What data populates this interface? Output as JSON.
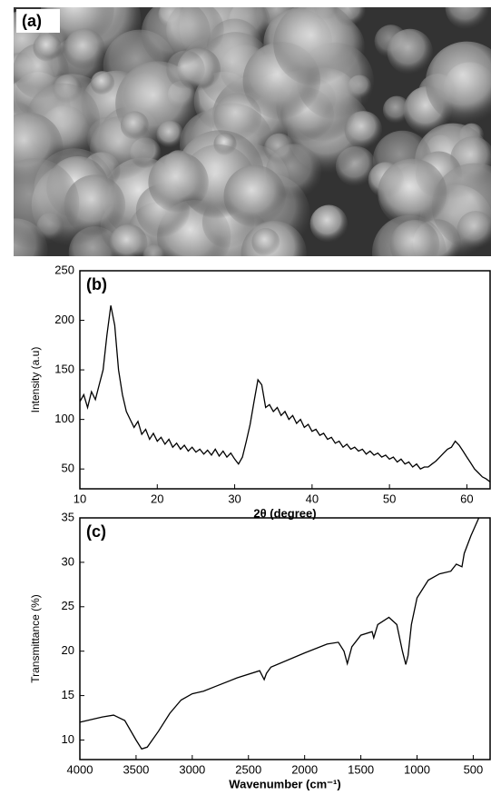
{
  "image": {
    "label": "(a)"
  },
  "chart_data": [
    {
      "type": "line",
      "annotation": "(b)",
      "x_label": "2θ (degree)",
      "y_label": "Intensity (a.u)",
      "color": "#000000",
      "x": [
        10,
        10.5,
        11,
        11.5,
        12,
        12.5,
        13,
        13.5,
        14,
        14.5,
        15,
        15.5,
        16,
        16.5,
        17,
        17.5,
        18,
        18.5,
        19,
        19.5,
        20,
        20.5,
        21,
        21.5,
        22,
        22.5,
        23,
        23.5,
        24,
        24.5,
        25,
        25.5,
        26,
        26.5,
        27,
        27.5,
        28,
        28.5,
        29,
        29.5,
        30,
        30.5,
        31,
        31.5,
        32,
        32.5,
        33,
        33.5,
        34,
        34.5,
        35,
        35.5,
        36,
        36.5,
        37,
        37.5,
        38,
        38.5,
        39,
        39.5,
        40,
        40.5,
        41,
        41.5,
        42,
        42.5,
        43,
        43.5,
        44,
        44.5,
        45,
        45.5,
        46,
        46.5,
        47,
        47.5,
        48,
        48.5,
        49,
        49.5,
        50,
        50.5,
        51,
        51.5,
        52,
        52.5,
        53,
        53.5,
        54,
        54.5,
        55,
        55.5,
        56,
        56.5,
        57,
        57.5,
        58,
        58.5,
        59,
        59.5,
        60,
        60.5,
        61,
        61.5,
        62,
        62.5,
        63
      ],
      "values": [
        118,
        125,
        112,
        128,
        120,
        135,
        150,
        185,
        215,
        195,
        150,
        125,
        108,
        100,
        92,
        98,
        85,
        90,
        80,
        86,
        78,
        82,
        75,
        80,
        72,
        76,
        70,
        74,
        68,
        72,
        67,
        70,
        65,
        69,
        64,
        70,
        63,
        68,
        62,
        66,
        60,
        55,
        62,
        78,
        95,
        118,
        140,
        135,
        112,
        115,
        108,
        112,
        104,
        108,
        100,
        104,
        96,
        100,
        92,
        95,
        88,
        90,
        84,
        86,
        80,
        82,
        76,
        78,
        72,
        75,
        70,
        72,
        68,
        70,
        65,
        68,
        64,
        66,
        62,
        64,
        60,
        62,
        57,
        60,
        55,
        57,
        52,
        55,
        50,
        52,
        52,
        55,
        58,
        62,
        66,
        70,
        72,
        78,
        74,
        68,
        62,
        56,
        50,
        46,
        42,
        40,
        37
      ],
      "xlim": [
        10,
        63
      ],
      "ylim": [
        30,
        250
      ],
      "xticks": [
        10,
        20,
        30,
        40,
        50,
        60
      ],
      "yticks": [
        50,
        100,
        150,
        200,
        250
      ]
    },
    {
      "type": "line",
      "annotation": "(c)",
      "x_label": "Wavenumber (cm⁻¹)",
      "y_label": "Transmittance (%)",
      "color": "#000000",
      "x": [
        4000,
        3800,
        3700,
        3600,
        3500,
        3450,
        3400,
        3300,
        3200,
        3100,
        3000,
        2900,
        2800,
        2600,
        2400,
        2360,
        2340,
        2300,
        2000,
        1800,
        1700,
        1650,
        1620,
        1580,
        1500,
        1400,
        1385,
        1350,
        1250,
        1180,
        1130,
        1100,
        1080,
        1050,
        1000,
        900,
        800,
        700,
        650,
        600,
        580,
        520,
        450
      ],
      "values": [
        12,
        12.6,
        12.8,
        12.2,
        10,
        9,
        9.2,
        11,
        13,
        14.5,
        15.2,
        15.5,
        16,
        17,
        17.8,
        16.8,
        17.5,
        18.2,
        19.8,
        20.8,
        21,
        20,
        18.6,
        20.5,
        21.8,
        22.2,
        21.5,
        23,
        23.8,
        23,
        20,
        18.5,
        19.5,
        23,
        26,
        28,
        28.7,
        29,
        29.8,
        29.5,
        31,
        33,
        35
      ],
      "xlim": [
        4000,
        350
      ],
      "ylim": [
        7.8,
        35
      ],
      "xticks": [
        4000,
        3500,
        3000,
        2500,
        2000,
        1500,
        1000,
        500
      ],
      "yticks": [
        10,
        15,
        20,
        25,
        30,
        35
      ]
    }
  ]
}
